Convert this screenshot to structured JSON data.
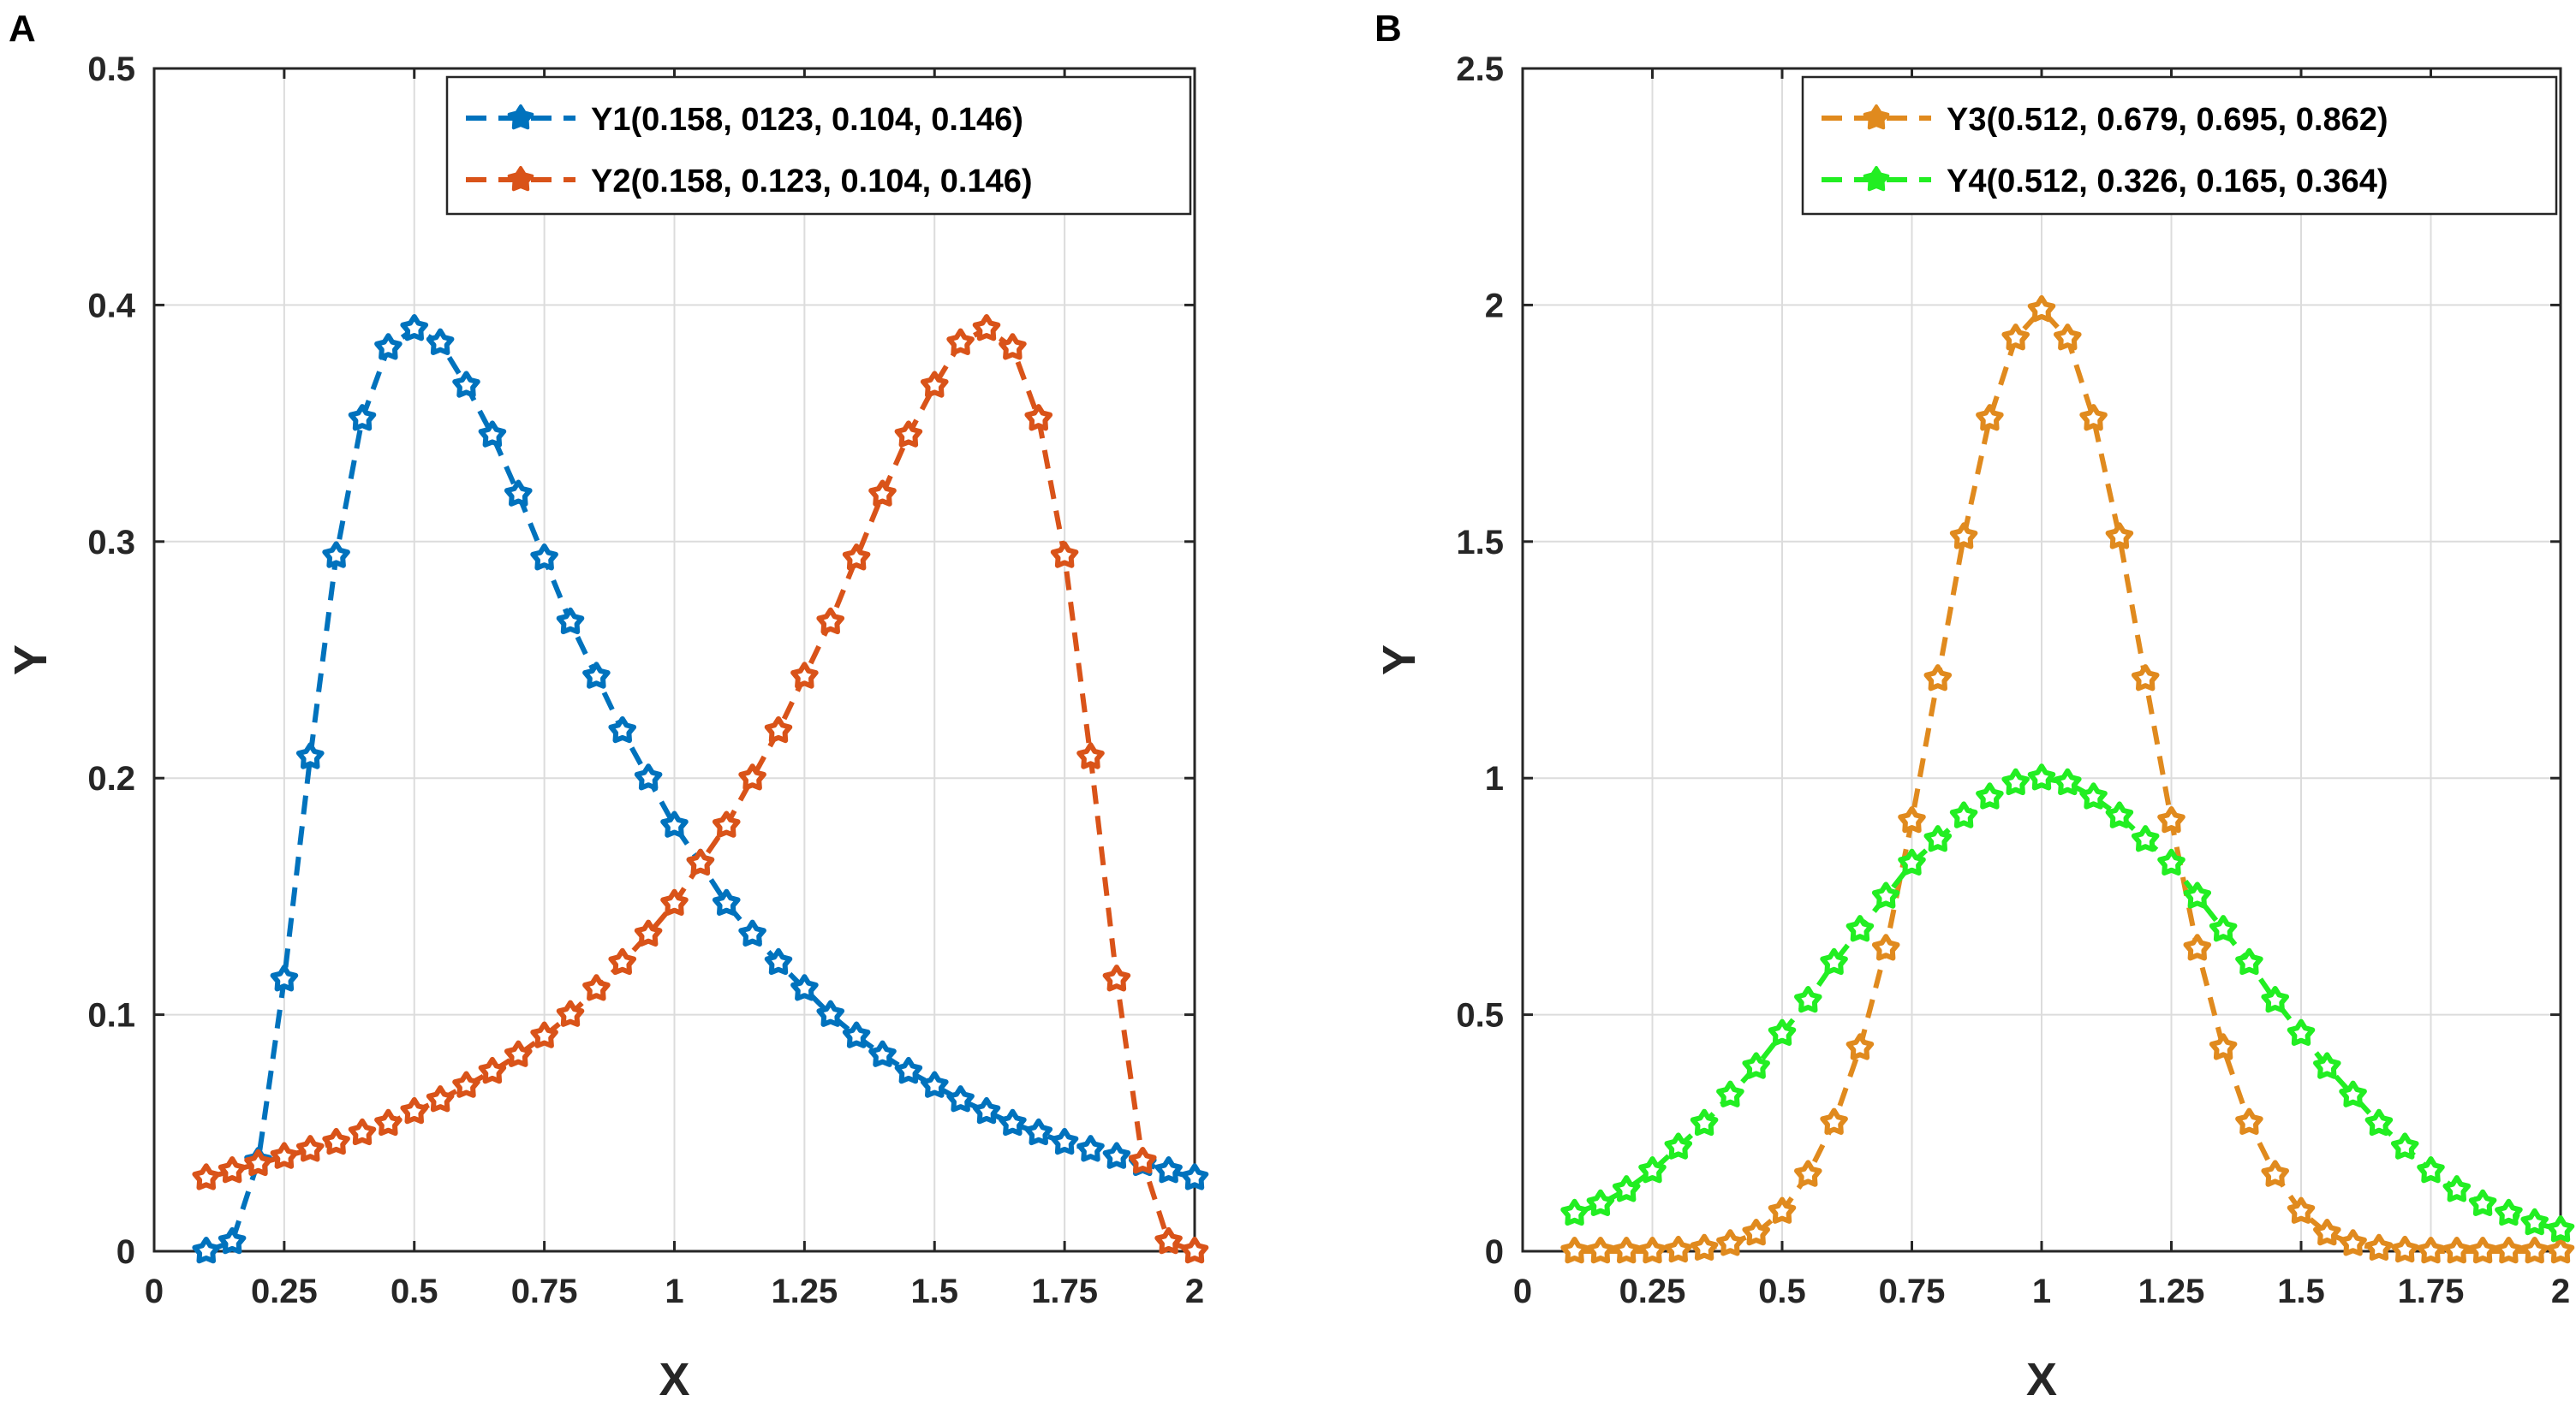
{
  "chart_data": [
    {
      "type": "line",
      "panel_label": "A",
      "xlabel": "X",
      "ylabel": "Y",
      "xlim": [
        0,
        2
      ],
      "ylim": [
        0,
        0.5
      ],
      "xticks": [
        0,
        0.25,
        0.5,
        0.75,
        1,
        1.25,
        1.5,
        1.75,
        2
      ],
      "xtick_labels": [
        "0",
        "0.25",
        "0.5",
        "0.75",
        "1",
        "1.25",
        "1.5",
        "1.75",
        "2"
      ],
      "yticks": [
        0,
        0.1,
        0.2,
        0.3,
        0.4,
        0.5
      ],
      "ytick_labels": [
        "0",
        "0.1",
        "0.2",
        "0.3",
        "0.4",
        "0.5"
      ],
      "grid": true,
      "legend_position": "top-right",
      "x": [
        0.1,
        0.15,
        0.2,
        0.25,
        0.3,
        0.35,
        0.4,
        0.45,
        0.5,
        0.55,
        0.6,
        0.65,
        0.7,
        0.75,
        0.8,
        0.85,
        0.9,
        0.95,
        1.0,
        1.05,
        1.1,
        1.15,
        1.2,
        1.25,
        1.3,
        1.35,
        1.4,
        1.45,
        1.5,
        1.55,
        1.6,
        1.65,
        1.7,
        1.75,
        1.8,
        1.85,
        1.9,
        1.95,
        2.0
      ],
      "series": [
        {
          "name": "Y1(0.158, 0123, 0.104, 0.146)",
          "color": "#0072BD",
          "values": [
            0.0,
            0.004,
            0.038,
            0.115,
            0.209,
            0.294,
            0.352,
            0.382,
            0.39,
            0.384,
            0.366,
            0.345,
            0.32,
            0.293,
            0.266,
            0.243,
            0.22,
            0.2,
            0.18,
            0.164,
            0.147,
            0.134,
            0.122,
            0.111,
            0.1,
            0.091,
            0.083,
            0.076,
            0.07,
            0.064,
            0.059,
            0.054,
            0.05,
            0.046,
            0.043,
            0.04,
            0.037,
            0.034,
            0.031
          ]
        },
        {
          "name": "Y2(0.158, 0.123, 0.104, 0.146)",
          "color": "#D95319",
          "values": [
            0.031,
            0.034,
            0.037,
            0.04,
            0.043,
            0.046,
            0.05,
            0.054,
            0.059,
            0.064,
            0.07,
            0.076,
            0.083,
            0.091,
            0.1,
            0.111,
            0.122,
            0.134,
            0.147,
            0.164,
            0.18,
            0.2,
            0.22,
            0.243,
            0.266,
            0.293,
            0.32,
            0.345,
            0.366,
            0.384,
            0.39,
            0.382,
            0.352,
            0.294,
            0.209,
            0.115,
            0.038,
            0.004,
            0.0
          ]
        }
      ]
    },
    {
      "type": "line",
      "panel_label": "B",
      "xlabel": "X",
      "ylabel": "Y",
      "xlim": [
        0,
        2
      ],
      "ylim": [
        0,
        2.5
      ],
      "xticks": [
        0,
        0.25,
        0.5,
        0.75,
        1,
        1.25,
        1.5,
        1.75,
        2
      ],
      "xtick_labels": [
        "0",
        "0.25",
        "0.5",
        "0.75",
        "1",
        "1.25",
        "1.5",
        "1.75",
        "2"
      ],
      "yticks": [
        0,
        0.5,
        1,
        1.5,
        2,
        2.5
      ],
      "ytick_labels": [
        "0",
        "0.5",
        "1",
        "1.5",
        "2",
        "2.5"
      ],
      "grid": true,
      "legend_position": "top-right",
      "x": [
        0.1,
        0.15,
        0.2,
        0.25,
        0.3,
        0.35,
        0.4,
        0.45,
        0.5,
        0.55,
        0.6,
        0.65,
        0.7,
        0.75,
        0.8,
        0.85,
        0.9,
        0.95,
        1.0,
        1.05,
        1.1,
        1.15,
        1.2,
        1.25,
        1.3,
        1.35,
        1.4,
        1.45,
        1.5,
        1.55,
        1.6,
        1.65,
        1.7,
        1.75,
        1.8,
        1.85,
        1.9,
        1.95,
        2.0
      ],
      "series": [
        {
          "name": "Y3(0.512, 0.679, 0.695,  0.862)",
          "color": "#E08A1E",
          "values": [
            0.0,
            0.0,
            0.0,
            0.0,
            0.002,
            0.006,
            0.016,
            0.038,
            0.084,
            0.162,
            0.272,
            0.43,
            0.64,
            0.91,
            1.21,
            1.51,
            1.76,
            1.93,
            1.99,
            1.93,
            1.76,
            1.51,
            1.21,
            0.91,
            0.64,
            0.43,
            0.272,
            0.162,
            0.084,
            0.038,
            0.016,
            0.006,
            0.002,
            0.0,
            0.0,
            0.0,
            0.0,
            0.0,
            0.0
          ]
        },
        {
          "name": "Y4(0.512, 0.326, 0.165, 0.364)",
          "color": "#22EE22",
          "values": [
            0.08,
            0.1,
            0.13,
            0.17,
            0.22,
            0.27,
            0.33,
            0.39,
            0.46,
            0.53,
            0.61,
            0.68,
            0.75,
            0.82,
            0.87,
            0.92,
            0.96,
            0.99,
            1.0,
            0.99,
            0.96,
            0.92,
            0.87,
            0.82,
            0.75,
            0.68,
            0.61,
            0.53,
            0.46,
            0.39,
            0.33,
            0.27,
            0.22,
            0.17,
            0.13,
            0.1,
            0.08,
            0.06,
            0.045
          ]
        }
      ]
    }
  ]
}
